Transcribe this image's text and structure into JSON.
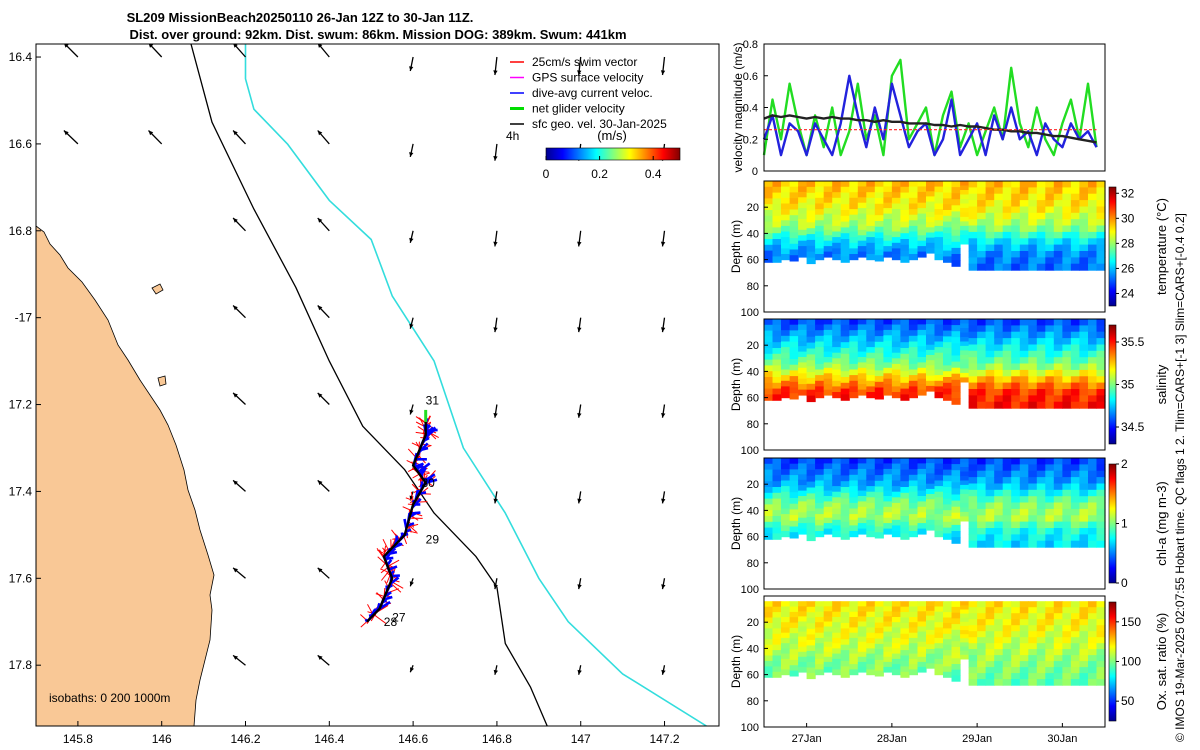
{
  "title": {
    "line1": "SL209 MissionBeach20250110 26-Jan 12Z to 30-Jan 11Z.",
    "line2": "Dist. over ground: 92km. Dist. swum: 86km. Mission DOG: 389km. Swum: 441km"
  },
  "side_note": "© IMOS 19-Mar-2025 02:07:55 Hobart time. QC flags 1  2. Tlim=CARS+[-1 3] Slim=CARS+[-0.4 0.2]",
  "chart_data": [
    {
      "type": "map",
      "xlim": [
        145.7,
        147.33
      ],
      "ylim": [
        -17.94,
        -16.37
      ],
      "x_ticks": [
        145.8,
        146,
        146.2,
        146.4,
        146.6,
        146.8,
        147,
        147.2
      ],
      "x_tick_labels": [
        "145.8",
        "146",
        "146.2",
        "146.4",
        "146.6",
        "146.8",
        "147",
        "147.2"
      ],
      "y_ticks": [
        -16.4,
        -16.6,
        -16.8,
        -17,
        -17.2,
        -17.4,
        -17.6,
        -17.8
      ],
      "y_tick_labels": [
        "16.4",
        "16.6",
        "16.8",
        "-17",
        "17.2",
        "17.4",
        "17.6",
        "17.8"
      ],
      "legend": [
        {
          "label": "25cm/s swim vector",
          "color": "#ff0000"
        },
        {
          "label": "GPS surface velocity",
          "color": "#ff00ff"
        },
        {
          "label": "dive-avg current veloc.",
          "color": "#0000ff"
        },
        {
          "label": "net glider velocity",
          "color": "#00dd00"
        },
        {
          "label": "sfc geo. vel. 30-Jan-2025",
          "color": "#000000"
        }
      ],
      "legend_extra": "4h",
      "colorbar": {
        "label": "(m/s)",
        "ticks": [
          0,
          0.2,
          0.4
        ],
        "tick_labels": [
          "0",
          "0.2",
          "0.4"
        ],
        "range": [
          0,
          0.5
        ]
      },
      "isobath_label": "isobaths: 0   200  1000m",
      "day_labels": [
        {
          "label": "31",
          "lon": 146.63,
          "lat": -17.2
        },
        {
          "label": "30",
          "lon": 146.62,
          "lat": -17.39
        },
        {
          "label": "29",
          "lon": 146.63,
          "lat": -17.52
        },
        {
          "label": "28",
          "lon": 146.53,
          "lat": -17.71
        },
        {
          "label": "27",
          "lon": 146.55,
          "lat": -17.7
        }
      ],
      "track": [
        [
          146.49,
          -17.7
        ],
        [
          146.52,
          -17.67
        ],
        [
          146.55,
          -17.6
        ],
        [
          146.53,
          -17.55
        ],
        [
          146.58,
          -17.5
        ],
        [
          146.6,
          -17.43
        ],
        [
          146.63,
          -17.38
        ],
        [
          146.6,
          -17.34
        ],
        [
          146.63,
          -17.27
        ],
        [
          146.63,
          -17.24
        ]
      ],
      "coast_200m": [
        [
          146.07,
          -16.37
        ],
        [
          146.12,
          -16.55
        ],
        [
          146.22,
          -16.75
        ],
        [
          146.32,
          -16.93
        ],
        [
          146.4,
          -17.1
        ],
        [
          146.48,
          -17.25
        ],
        [
          146.58,
          -17.35
        ],
        [
          146.65,
          -17.45
        ],
        [
          146.75,
          -17.55
        ],
        [
          146.8,
          -17.62
        ],
        [
          146.82,
          -17.75
        ],
        [
          146.88,
          -17.85
        ],
        [
          146.92,
          -17.94
        ]
      ],
      "coast_1000m": [
        [
          146.2,
          -16.37
        ],
        [
          146.2,
          -16.45
        ],
        [
          146.22,
          -16.52
        ],
        [
          146.3,
          -16.6
        ],
        [
          146.4,
          -16.73
        ],
        [
          146.5,
          -16.82
        ],
        [
          146.55,
          -16.95
        ],
        [
          146.65,
          -17.1
        ],
        [
          146.72,
          -17.3
        ],
        [
          146.82,
          -17.45
        ],
        [
          146.9,
          -17.6
        ],
        [
          146.97,
          -17.7
        ],
        [
          147.1,
          -17.82
        ],
        [
          147.3,
          -17.94
        ]
      ]
    },
    {
      "type": "line",
      "ylabel": "velocity magnitude (m/s)",
      "ylim": [
        0,
        0.8
      ],
      "y_ticks": [
        0,
        0.2,
        0.4,
        0.6,
        0.8
      ],
      "y_tick_labels": [
        "0",
        "0.2",
        "0.4",
        "0.6",
        "0.8"
      ],
      "x": [
        0,
        0.1,
        0.2,
        0.3,
        0.4,
        0.5,
        0.6,
        0.7,
        0.8,
        0.9,
        1.0,
        1.1,
        1.2,
        1.3,
        1.4,
        1.5,
        1.6,
        1.7,
        1.8,
        1.9,
        2.0,
        2.1,
        2.2,
        2.3,
        2.4,
        2.5,
        2.6,
        2.7,
        2.8,
        2.9,
        3.0,
        3.1,
        3.2,
        3.3,
        3.4,
        3.5,
        3.6,
        3.7,
        3.8,
        3.9
      ],
      "series": [
        {
          "name": "net glider velocity",
          "color": "#22dd22",
          "values": [
            0.1,
            0.45,
            0.2,
            0.55,
            0.3,
            0.1,
            0.35,
            0.15,
            0.4,
            0.1,
            0.25,
            0.55,
            0.2,
            0.35,
            0.1,
            0.6,
            0.7,
            0.2,
            0.3,
            0.4,
            0.1,
            0.35,
            0.5,
            0.15,
            0.3,
            0.1,
            0.25,
            0.4,
            0.2,
            0.65,
            0.3,
            0.15,
            0.4,
            0.2,
            0.1,
            0.3,
            0.45,
            0.2,
            0.55,
            0.15
          ]
        },
        {
          "name": "dive-avg current veloc.",
          "color": "#2222dd",
          "values": [
            0.2,
            0.35,
            0.1,
            0.3,
            0.25,
            0.1,
            0.3,
            0.2,
            0.1,
            0.3,
            0.6,
            0.35,
            0.15,
            0.4,
            0.2,
            0.55,
            0.35,
            0.15,
            0.25,
            0.3,
            0.1,
            0.2,
            0.45,
            0.1,
            0.2,
            0.3,
            0.1,
            0.35,
            0.2,
            0.4,
            0.2,
            0.25,
            0.1,
            0.3,
            0.2,
            0.15,
            0.3,
            0.2,
            0.25,
            0.15
          ]
        },
        {
          "name": "sfc geo. vel.",
          "color": "#222222",
          "values": [
            0.33,
            0.35,
            0.34,
            0.35,
            0.34,
            0.33,
            0.34,
            0.33,
            0.34,
            0.33,
            0.33,
            0.32,
            0.32,
            0.31,
            0.32,
            0.31,
            0.31,
            0.3,
            0.3,
            0.3,
            0.29,
            0.29,
            0.28,
            0.29,
            0.28,
            0.28,
            0.27,
            0.26,
            0.26,
            0.25,
            0.25,
            0.24,
            0.24,
            0.23,
            0.22,
            0.22,
            0.21,
            0.2,
            0.19,
            0.18
          ]
        },
        {
          "name": "25cm/s swim vector",
          "color": "#ff2222",
          "dashed": true,
          "values": [
            0.26,
            0.26,
            0.26,
            0.26,
            0.26,
            0.26,
            0.26,
            0.26,
            0.26,
            0.26,
            0.26,
            0.26,
            0.26,
            0.26,
            0.26,
            0.26,
            0.26,
            0.26,
            0.26,
            0.26,
            0.26,
            0.26,
            0.26,
            0.26,
            0.26,
            0.26,
            0.26,
            0.26,
            0.26,
            0.26,
            0.26,
            0.26,
            0.26,
            0.26,
            0.26,
            0.26,
            0.26,
            0.26,
            0.26,
            0.26
          ]
        }
      ]
    },
    {
      "type": "heatmap",
      "ylabel": "Depth (m)",
      "clabel": "temperature (°C)",
      "ylim": [
        0,
        100
      ],
      "y_ticks": [
        20,
        40,
        60,
        80,
        100
      ],
      "y_tick_labels": [
        "20",
        "40",
        "60",
        "80",
        "100"
      ],
      "c_ticks": [
        24,
        26,
        28,
        30,
        32
      ],
      "c_tick_labels": [
        "24",
        "26",
        "28",
        "30",
        "32"
      ],
      "crange": [
        23,
        32.5
      ],
      "profile_depths": [
        0,
        20,
        35,
        45,
        55,
        65
      ],
      "profile_values": [
        29.5,
        29.0,
        28.0,
        26.5,
        25.5,
        25.2
      ],
      "bottom_depths": [
        62,
        62,
        60,
        61,
        58,
        63,
        60,
        58,
        60,
        62,
        60,
        58,
        60,
        61,
        58,
        60,
        62,
        60,
        58,
        55,
        60,
        62,
        65,
        48,
        68,
        68,
        68,
        68,
        68,
        68,
        68,
        68,
        68,
        68,
        68,
        68,
        68,
        68,
        68,
        68
      ]
    },
    {
      "type": "heatmap",
      "ylabel": "Depth (m)",
      "clabel": "salinity",
      "ylim": [
        0,
        100
      ],
      "y_ticks": [
        20,
        40,
        60,
        80,
        100
      ],
      "y_tick_labels": [
        "20",
        "40",
        "60",
        "80",
        "100"
      ],
      "c_ticks": [
        34.5,
        35,
        35.5
      ],
      "c_tick_labels": [
        "34.5",
        "35",
        "35.5"
      ],
      "crange": [
        34.3,
        35.7
      ],
      "profile_depths": [
        0,
        20,
        35,
        45,
        55,
        65
      ],
      "profile_values": [
        34.55,
        34.8,
        35.0,
        35.25,
        35.45,
        35.5
      ],
      "bottom_depths": [
        62,
        62,
        60,
        61,
        58,
        63,
        60,
        58,
        60,
        62,
        60,
        58,
        60,
        61,
        58,
        60,
        62,
        60,
        58,
        55,
        60,
        62,
        65,
        48,
        68,
        68,
        68,
        68,
        68,
        68,
        68,
        68,
        68,
        68,
        68,
        68,
        68,
        68,
        68,
        68
      ]
    },
    {
      "type": "heatmap",
      "ylabel": "Depth (m)",
      "clabel": "chl-a (mg m-3)",
      "ylim": [
        0,
        100
      ],
      "y_ticks": [
        20,
        40,
        60,
        80,
        100
      ],
      "y_tick_labels": [
        "20",
        "40",
        "60",
        "80",
        "100"
      ],
      "c_ticks": [
        0,
        1,
        2
      ],
      "c_tick_labels": [
        "0",
        "1",
        "2"
      ],
      "crange": [
        0,
        2
      ],
      "profile_depths": [
        0,
        20,
        35,
        45,
        55,
        65
      ],
      "profile_values": [
        0.35,
        0.6,
        1.0,
        1.1,
        0.8,
        0.7
      ],
      "bottom_depths": [
        62,
        62,
        60,
        61,
        58,
        63,
        60,
        58,
        60,
        62,
        60,
        58,
        60,
        61,
        58,
        60,
        62,
        60,
        58,
        55,
        60,
        62,
        65,
        48,
        68,
        68,
        68,
        68,
        68,
        68,
        68,
        68,
        68,
        68,
        68,
        68,
        68,
        68,
        68,
        68
      ]
    },
    {
      "type": "heatmap",
      "ylabel": "Depth (m)",
      "clabel": "Ox. sat. ratio (%)",
      "ylim": [
        0,
        100
      ],
      "y_ticks": [
        20,
        40,
        60,
        80,
        100
      ],
      "y_tick_labels": [
        "20",
        "40",
        "60",
        "80",
        "100"
      ],
      "c_ticks": [
        50,
        100,
        150
      ],
      "c_tick_labels": [
        "50",
        "100",
        "150"
      ],
      "crange": [
        25,
        175
      ],
      "profile_depths": [
        0,
        20,
        35,
        45,
        55,
        65
      ],
      "profile_values": [
        122,
        118,
        112,
        106,
        100,
        96
      ],
      "bottom_depths": [
        62,
        62,
        60,
        61,
        58,
        63,
        60,
        58,
        60,
        62,
        60,
        58,
        60,
        61,
        58,
        60,
        62,
        60,
        58,
        55,
        60,
        62,
        65,
        48,
        68,
        68,
        68,
        68,
        68,
        68,
        68,
        68,
        68,
        68,
        68,
        68,
        68,
        68,
        68,
        68
      ]
    }
  ],
  "time_axis": {
    "range_days": [
      0,
      4
    ],
    "ticks": [
      0.5,
      1.5,
      2.5,
      3.5
    ],
    "tick_labels": [
      "27Jan",
      "28Jan",
      "29Jan",
      "30Jan"
    ]
  },
  "colors": {
    "land": "#f9c896",
    "isobath_1000": "#33dddd",
    "track": "#000000",
    "swim": "#ff0000",
    "current": "#0000ff"
  }
}
